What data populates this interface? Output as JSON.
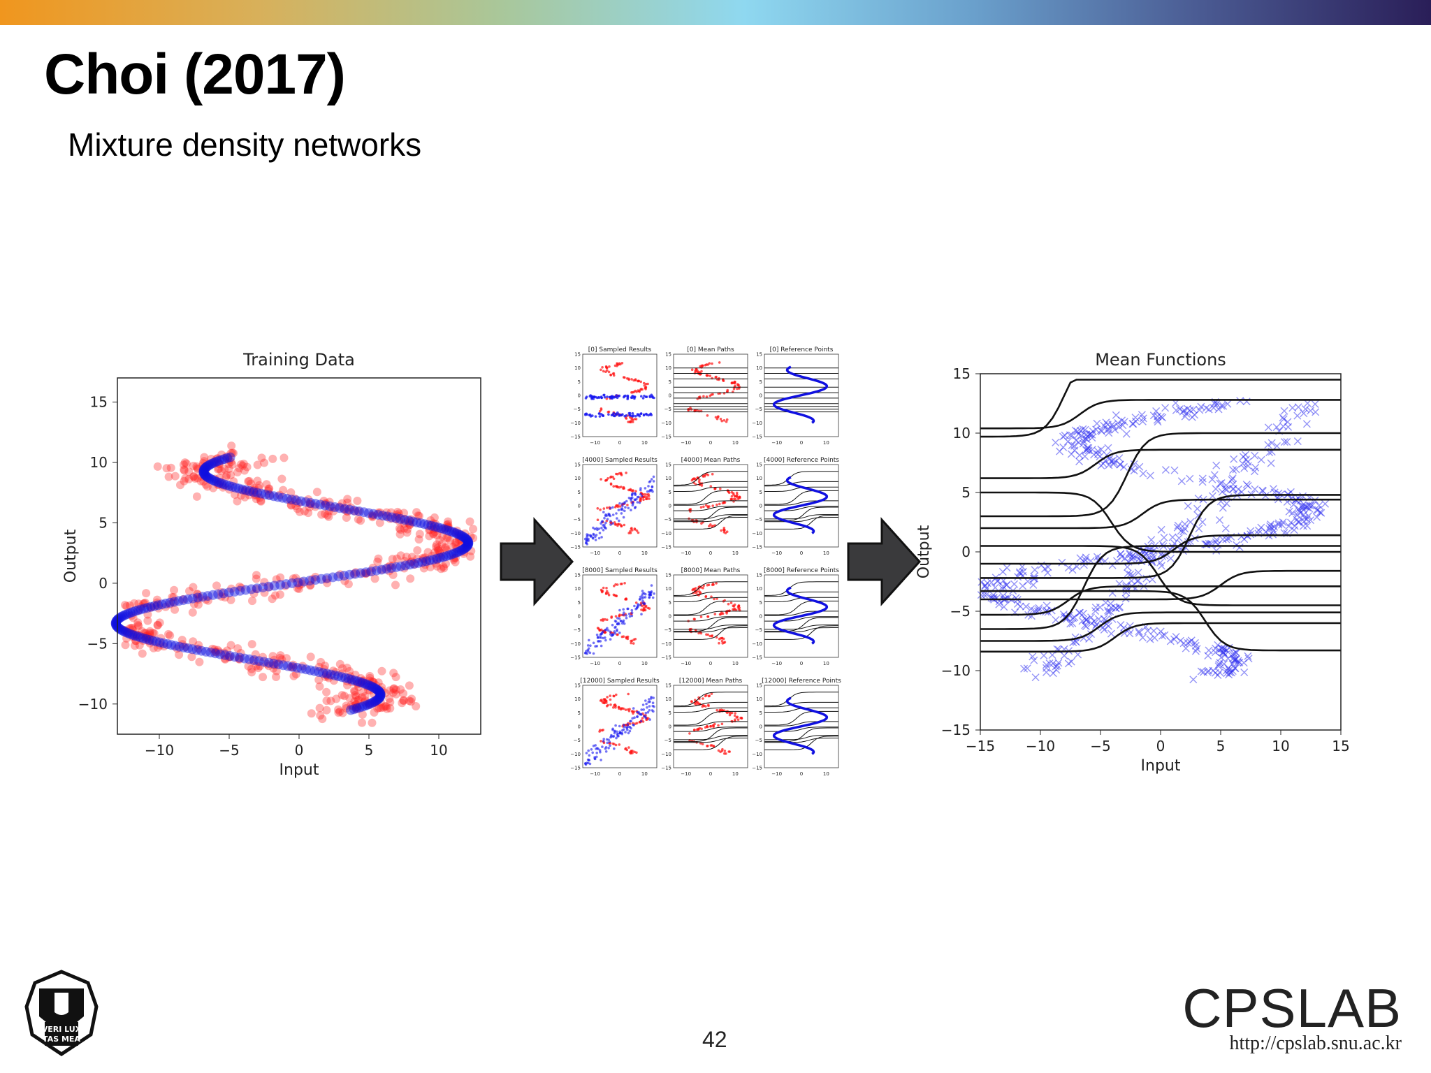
{
  "slide": {
    "title": "Choi (2017)",
    "subtitle": "Mixture density networks",
    "page_number": "42",
    "brand": "CPSLAB",
    "url": "http://cpslab.snu.ac.kr",
    "logo_text": "VERITAS LUX MEA",
    "colors": {
      "scatter_red": "#ff2020",
      "curve_blue": "#1010e0",
      "arrow_fill": "#3a3a3c",
      "lines": "#111111"
    }
  },
  "chart_data": [
    {
      "type": "scatter",
      "title": "Training Data",
      "xlabel": "Input",
      "ylabel": "Output",
      "xlim": [
        -13,
        13
      ],
      "ylim": [
        -12.5,
        17
      ],
      "xticks": [
        "−10",
        "−5",
        "0",
        "5",
        "10"
      ],
      "yticks": [
        "−10",
        "−5",
        "0",
        "5",
        "10",
        "15"
      ],
      "series": [
        {
          "kind": "points",
          "color": "#ff2020",
          "note_count": 700
        },
        {
          "kind": "curve",
          "color": "#1010e0"
        }
      ]
    },
    {
      "type": "scatter",
      "grid": {
        "rows": 4,
        "cols": 3
      },
      "panel_titles": [
        [
          "[0] Sampled Results",
          "[0] Mean Paths",
          "[0] Reference Points"
        ],
        [
          "[4000] Sampled Results",
          "[4000] Mean Paths",
          "[4000] Reference Points"
        ],
        [
          "[8000] Sampled Results",
          "[8000] Mean Paths",
          "[8000] Reference Points"
        ],
        [
          "[12000] Sampled Results",
          "[12000] Mean Paths",
          "[12000] Reference Points"
        ]
      ],
      "xticks": [
        "−10",
        "0",
        "10"
      ],
      "yticks": [
        "15",
        "10",
        "5",
        "0",
        "−5",
        "−10",
        "−15"
      ]
    },
    {
      "type": "line",
      "title": "Mean Functions",
      "xlabel": "Input",
      "ylabel": "Output",
      "xlim": [
        -15,
        15
      ],
      "ylim": [
        -15,
        15
      ],
      "xticks": [
        "−15",
        "−10",
        "−5",
        "0",
        "5",
        "10",
        "15"
      ],
      "yticks": [
        "−15",
        "−10",
        "−5",
        "0",
        "5",
        "10",
        "15"
      ],
      "series": [
        {
          "kind": "sample-markers",
          "marker": "x",
          "color": "#1010e0"
        },
        {
          "kind": "mean-paths",
          "color": "#111111",
          "levels": [
            9.7,
            10.4,
            6.2,
            5.0,
            3.0,
            2.0,
            0.5,
            -1.0,
            -2.2,
            -3.3,
            -4.0,
            -5.3,
            -6.5,
            -7.5,
            -8.4
          ]
        }
      ]
    }
  ]
}
